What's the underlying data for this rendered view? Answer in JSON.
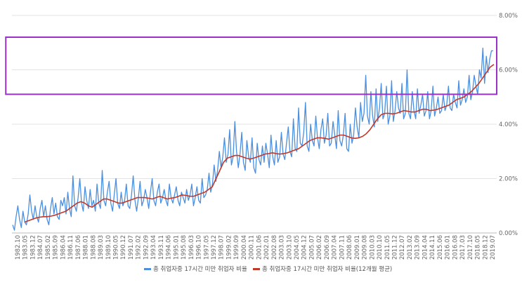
{
  "chart_data": {
    "type": "line",
    "title": "",
    "xlabel": "",
    "ylabel": "",
    "ylim": [
      0,
      8
    ],
    "y_tick_labels": [
      "0.00%",
      "2.00%",
      "4.00%",
      "6.00%",
      "8.00%"
    ],
    "x_tick_labels": [
      "1982.10",
      "1983.05",
      "1983.12",
      "1984.07",
      "1985.02",
      "1985.09",
      "1986.04",
      "1986.11",
      "1987.06",
      "1988.01",
      "1988.08",
      "1989.03",
      "1989.10",
      "1990.05",
      "1990.12",
      "1991.07",
      "1992.02",
      "1992.09",
      "1993.04",
      "1993.11",
      "1994.06",
      "1995.01",
      "1995.08",
      "1996.03",
      "1996.10",
      "1997.05",
      "1997.12",
      "1998.07",
      "1999.02",
      "1999.09",
      "2000.04",
      "2000.11",
      "2001.06",
      "2002.01",
      "2002.08",
      "2003.03",
      "2003.10",
      "2004.05",
      "2004.12",
      "2005.07",
      "2006.02",
      "2006.09",
      "2007.04",
      "2007.11",
      "2008.06",
      "2009.01",
      "2009.08",
      "2010.03",
      "2010.10",
      "2011.05",
      "2011.12",
      "2012.07",
      "2013.02",
      "2013.09",
      "2014.04",
      "2014.11",
      "2015.06",
      "2016.01",
      "2016.08",
      "2017.03",
      "2017.10",
      "2018.05",
      "2018.12",
      "2019.07"
    ],
    "grid": true,
    "legend_position": "bottom",
    "highlight_box": {
      "color": "#9b30c8",
      "x_from": "2019.01",
      "x_to": "2019.07"
    },
    "series": [
      {
        "name": "총 취업자중 17시간 미만 취업자 비율",
        "color": "#4a8fe0",
        "values": [
          0.3,
          0.1,
          0.6,
          1.0,
          0.5,
          0.2,
          0.8,
          0.4,
          0.3,
          0.7,
          1.4,
          0.8,
          0.5,
          1.0,
          0.6,
          0.4,
          0.9,
          1.2,
          0.6,
          1.0,
          0.5,
          0.3,
          0.9,
          1.3,
          0.7,
          1.1,
          0.6,
          0.5,
          1.2,
          1.0,
          1.3,
          0.7,
          1.5,
          0.9,
          0.6,
          2.1,
          1.0,
          0.8,
          1.3,
          2.0,
          1.1,
          0.8,
          1.7,
          1.2,
          0.9,
          1.6,
          1.0,
          1.2,
          0.8,
          1.8,
          1.1,
          0.9,
          2.3,
          1.2,
          1.0,
          1.5,
          1.9,
          1.1,
          0.8,
          1.4,
          2.0,
          1.1,
          0.9,
          1.5,
          1.0,
          1.2,
          1.8,
          1.0,
          0.9,
          1.4,
          2.1,
          1.2,
          0.8,
          1.3,
          1.9,
          1.0,
          1.2,
          1.6,
          1.3,
          0.9,
          1.5,
          2.0,
          1.2,
          1.0,
          1.5,
          1.8,
          1.1,
          1.3,
          1.6,
          1.2,
          1.0,
          1.8,
          1.3,
          1.1,
          1.4,
          1.7,
          1.2,
          1.0,
          1.5,
          1.3,
          1.1,
          1.6,
          1.2,
          1.4,
          1.8,
          1.0,
          1.3,
          1.7,
          1.2,
          1.1,
          2.0,
          1.3,
          1.4,
          1.6,
          2.2,
          1.5,
          1.8,
          2.5,
          1.9,
          2.3,
          3.0,
          2.4,
          2.8,
          3.5,
          2.6,
          2.9,
          3.8,
          2.5,
          2.8,
          4.1,
          3.0,
          2.4,
          2.9,
          3.7,
          2.6,
          2.3,
          3.4,
          2.8,
          2.6,
          3.5,
          2.4,
          2.2,
          3.3,
          2.7,
          2.5,
          3.2,
          2.6,
          3.3,
          2.9,
          2.4,
          3.6,
          2.8,
          2.5,
          3.4,
          2.6,
          2.8,
          3.7,
          2.9,
          2.7,
          3.3,
          3.9,
          3.0,
          2.8,
          4.2,
          3.1,
          3.0,
          4.6,
          3.3,
          3.2,
          3.7,
          4.8,
          3.2,
          3.0,
          4.0,
          3.4,
          3.2,
          4.3,
          3.5,
          3.1,
          3.8,
          4.2,
          3.3,
          3.6,
          4.4,
          3.2,
          3.3,
          4.1,
          3.6,
          3.1,
          4.5,
          3.4,
          3.2,
          3.6,
          4.4,
          3.1,
          3.0,
          4.0,
          3.3,
          3.6,
          4.6,
          3.9,
          3.5,
          4.8,
          4.1,
          4.4,
          5.8,
          4.3,
          4.0,
          5.2,
          4.3,
          3.9,
          5.3,
          4.1,
          4.6,
          5.5,
          4.2,
          4.4,
          5.4,
          4.0,
          4.3,
          5.6,
          4.1,
          4.5,
          5.2,
          4.6,
          4.4,
          5.5,
          4.2,
          4.4,
          6.0,
          4.4,
          4.2,
          5.2,
          4.5,
          4.2,
          5.3,
          4.4,
          4.7,
          5.1,
          4.3,
          4.5,
          5.2,
          4.2,
          4.5,
          5.4,
          4.3,
          4.6,
          5.0,
          4.4,
          4.5,
          5.1,
          4.5,
          4.7,
          5.4,
          4.6,
          4.5,
          5.1,
          4.8,
          4.6,
          5.6,
          4.7,
          4.9,
          5.3,
          4.8,
          5.0,
          5.8,
          4.9,
          5.2,
          5.8,
          5.4,
          5.1,
          6.0,
          5.7,
          6.8,
          5.5,
          6.5,
          5.9,
          6.4,
          6.7,
          6.7
        ]
      },
      {
        "name": "총 취업자중 17시간 미만 취업자 비율(12개월 평균)",
        "color": "#c0392b",
        "values": [
          0.4,
          0.45,
          0.5,
          0.55,
          0.58,
          0.6,
          0.6,
          0.62,
          0.65,
          0.7,
          0.75,
          0.8,
          0.9,
          1.0,
          1.1,
          1.15,
          1.1,
          1.0,
          0.95,
          1.05,
          1.15,
          1.25,
          1.25,
          1.2,
          1.15,
          1.1,
          1.1,
          1.15,
          1.2,
          1.25,
          1.3,
          1.3,
          1.3,
          1.28,
          1.25,
          1.3,
          1.35,
          1.3,
          1.25,
          1.28,
          1.3,
          1.35,
          1.4,
          1.38,
          1.35,
          1.35,
          1.4,
          1.45,
          1.5,
          1.6,
          1.7,
          2.0,
          2.3,
          2.6,
          2.75,
          2.8,
          2.85,
          2.85,
          2.8,
          2.75,
          2.72,
          2.75,
          2.8,
          2.85,
          2.9,
          2.92,
          2.95,
          2.92,
          2.9,
          2.92,
          2.95,
          3.0,
          3.05,
          3.1,
          3.2,
          3.3,
          3.4,
          3.45,
          3.5,
          3.5,
          3.48,
          3.45,
          3.5,
          3.55,
          3.6,
          3.6,
          3.55,
          3.5,
          3.48,
          3.5,
          3.55,
          3.65,
          3.8,
          4.0,
          4.2,
          4.35,
          4.4,
          4.4,
          4.38,
          4.4,
          4.45,
          4.5,
          4.48,
          4.45,
          4.45,
          4.5,
          4.55,
          4.55,
          4.5,
          4.52,
          4.55,
          4.6,
          4.65,
          4.7,
          4.8,
          4.9,
          4.95,
          5.0,
          5.1,
          5.2,
          5.35,
          5.5,
          5.7,
          5.9,
          6.1,
          6.2
        ]
      }
    ]
  }
}
